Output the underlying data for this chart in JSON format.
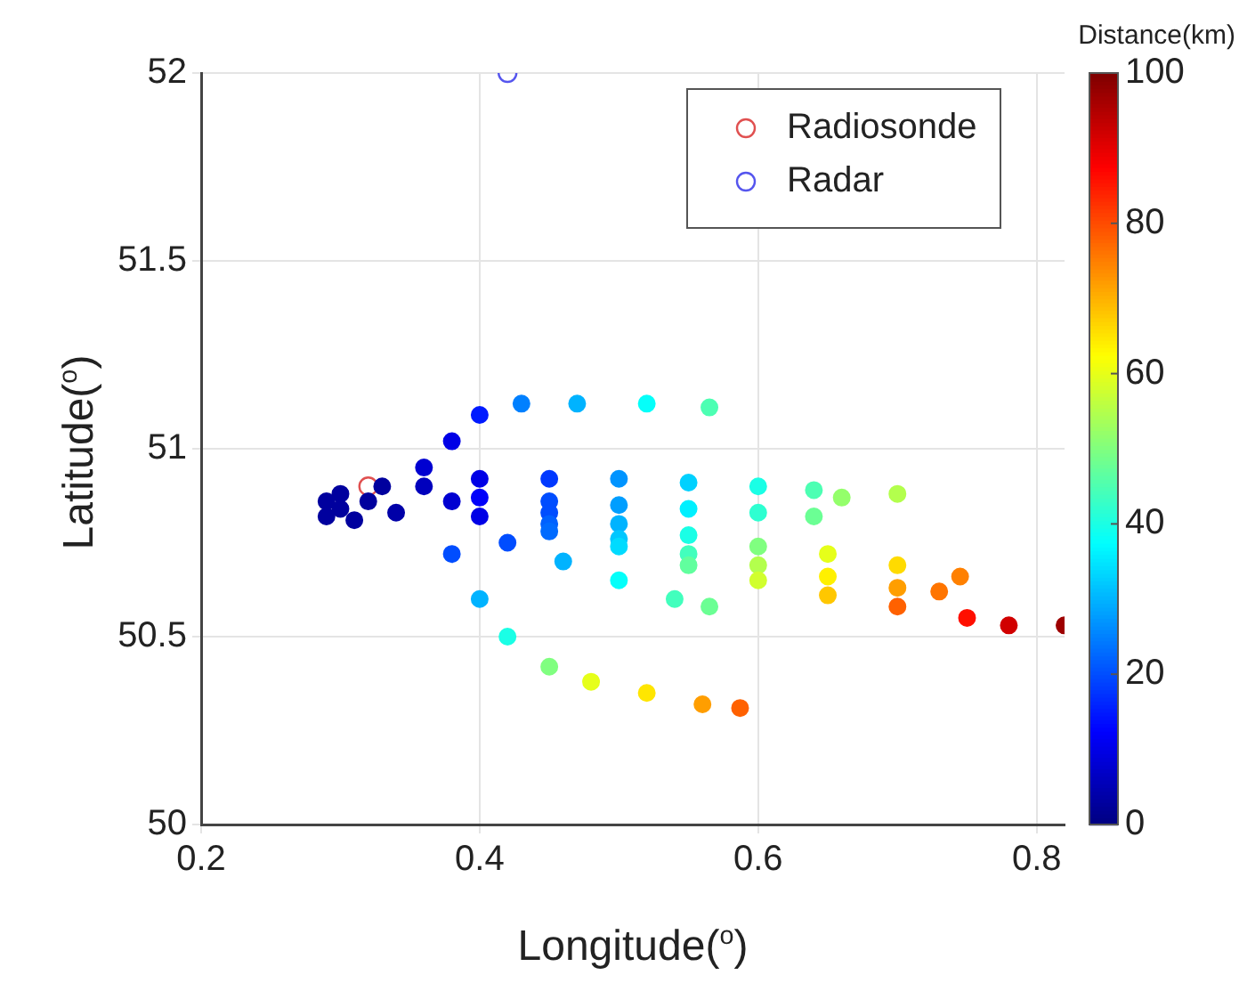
{
  "chart_data": {
    "type": "scatter",
    "xlabel": "Longitude($^{o}$)",
    "ylabel": "Latitude($^{o}$)",
    "clabel": "Distance(km)",
    "xlim": [
      0.2,
      0.82
    ],
    "xticks": [
      0.2,
      0.4,
      0.6,
      0.8
    ],
    "ylim": [
      50,
      52
    ],
    "yticks": [
      50,
      50.5,
      51,
      51.5,
      52
    ],
    "clim": [
      0,
      100
    ],
    "cticks": [
      0,
      20,
      40,
      60,
      80,
      100
    ],
    "grid": true,
    "legend": "top right",
    "marker": "circle",
    "series": [
      {
        "x": [
          0.3,
          0.29,
          0.29,
          0.31,
          0.34,
          0.32,
          0.3,
          0.33,
          0.36,
          0.38,
          0.4,
          0.36,
          0.38,
          0.4,
          0.43,
          0.47,
          0.52,
          0.565,
          0.38,
          0.4,
          0.42,
          0.45,
          0.48,
          0.52,
          0.56,
          0.587,
          0.42,
          0.46,
          0.5,
          0.54,
          0.565,
          0.4,
          0.45,
          0.5,
          0.55,
          0.6,
          0.64,
          0.4,
          0.45,
          0.5,
          0.55,
          0.6,
          0.64,
          0.45,
          0.5,
          0.55,
          0.6,
          0.65,
          0.7,
          0.745,
          0.45,
          0.5,
          0.55,
          0.6,
          0.65,
          0.7,
          0.73,
          0.45,
          0.5,
          0.55,
          0.6,
          0.65,
          0.7,
          0.75,
          0.78,
          0.82,
          0.66,
          0.7
        ],
        "values": [
          50.88,
          50.86,
          50.82,
          50.81,
          50.83,
          50.86,
          50.84,
          50.9,
          50.9,
          50.86,
          50.82,
          50.95,
          51.02,
          51.09,
          51.12,
          51.12,
          51.12,
          51.11,
          50.72,
          50.6,
          50.5,
          50.42,
          50.38,
          50.35,
          50.32,
          50.31,
          50.75,
          50.7,
          50.65,
          50.6,
          50.58,
          50.92,
          50.92,
          50.92,
          50.91,
          50.9,
          50.89,
          50.87,
          50.86,
          50.85,
          50.84,
          50.83,
          50.82,
          50.83,
          50.8,
          50.77,
          50.74,
          50.72,
          50.69,
          50.66,
          50.8,
          50.76,
          50.72,
          50.69,
          50.66,
          50.63,
          50.62,
          50.78,
          50.74,
          50.69,
          50.65,
          50.61,
          50.58,
          50.55,
          50.53,
          50.53,
          50.87,
          50.88
        ],
        "cvalues": [
          3,
          3,
          3,
          3,
          4,
          3,
          3,
          3,
          6,
          8,
          10,
          8,
          10,
          15,
          25,
          30,
          38,
          45,
          20,
          30,
          40,
          50,
          60,
          65,
          72,
          78,
          20,
          30,
          38,
          44,
          48,
          10,
          18,
          27,
          33,
          40,
          45,
          12,
          20,
          28,
          36,
          42,
          48,
          20,
          30,
          40,
          50,
          60,
          66,
          75,
          22,
          32,
          44,
          55,
          64,
          72,
          76,
          23,
          34,
          47,
          58,
          68,
          78,
          86,
          92,
          97,
          52,
          55
        ],
        "colors": [
          "#00009e",
          "#00009e",
          "#00009e",
          "#00009e",
          "#0000a8",
          "#00009e",
          "#00009e",
          "#00009e",
          "#0000bd",
          "#0000d1",
          "#0000e6",
          "#0000d1",
          "#0000e6",
          "#001aff",
          "#0080ff",
          "#00b3ff",
          "#05fffa",
          "#4dffb3",
          "#004dff",
          "#00b3ff",
          "#1affe6",
          "#80ff80",
          "#e6ff1a",
          "#ffe600",
          "#ff9e00",
          "#ff6100",
          "#004dff",
          "#00b3ff",
          "#05fffa",
          "#42ffbd",
          "#6bff94",
          "#0000e6",
          "#0038ff",
          "#0094ff",
          "#00d1ff",
          "#1affe6",
          "#4dffb3",
          "#0000fa",
          "#004dff",
          "#009eff",
          "#00f0ff",
          "#2effd1",
          "#6bff94",
          "#004dff",
          "#00b3ff",
          "#1affe6",
          "#80ff80",
          "#e6ff1a",
          "#ffdb00",
          "#ff8000",
          "#0061ff",
          "#00c7ff",
          "#42ffbd",
          "#b3ff4d",
          "#fff000",
          "#ff9e00",
          "#ff7500",
          "#006bff",
          "#00dbff",
          "#61ff9e",
          "#d1ff2e",
          "#ffc700",
          "#ff6100",
          "#ff0f00",
          "#d10000",
          "#9e0000",
          "#94ff6b",
          "#b3ff4d"
        ]
      },
      {
        "name": "Radiosonde",
        "color": "#e05050",
        "x": [
          0.32
        ],
        "values": [
          50.9
        ]
      },
      {
        "name": "Radar",
        "color": "#5555ee",
        "x": [
          0.42
        ],
        "values": [
          52
        ]
      }
    ]
  }
}
